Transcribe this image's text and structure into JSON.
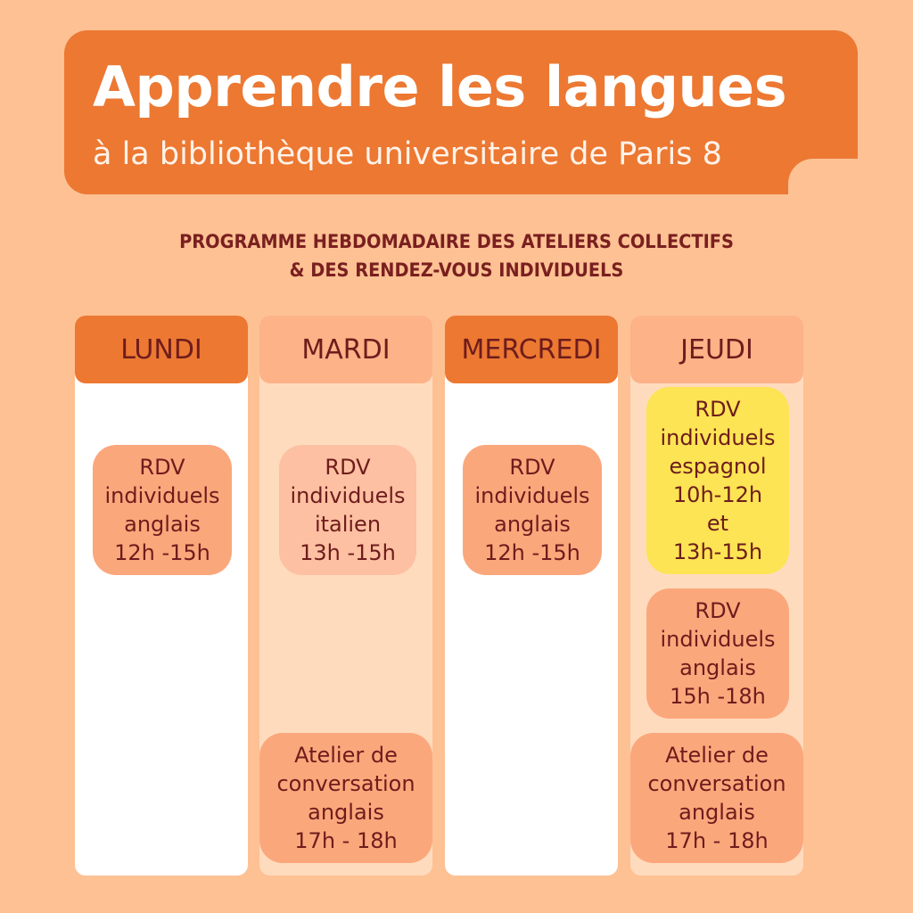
{
  "header": {
    "title": "Apprendre les langues",
    "subtitle": "à la bibliothèque universitaire de Paris 8"
  },
  "programme": {
    "line1": "PROGRAMME HEBDOMADAIRE DES ATELIERS COLLECTIFS",
    "line2": "& DES RENDEZ-VOUS INDIVIDUELS"
  },
  "days": {
    "lundi": {
      "label": "LUNDI",
      "events": [
        "RDV\nindividuels\nanglais\n12h -15h"
      ]
    },
    "mardi": {
      "label": "MARDI",
      "events": [
        "RDV\nindividuels\nitalien\n13h -15h",
        "Atelier de\nconversation\nanglais\n17h - 18h"
      ]
    },
    "mercredi": {
      "label": "MERCREDI",
      "events": [
        "RDV\nindividuels\nanglais\n12h -15h"
      ]
    },
    "jeudi": {
      "label": "JEUDI",
      "events": [
        "RDV\nindividuels\nespagnol\n10h-12h\net\n13h-15h",
        "RDV\nindividuels\nanglais\n15h -18h",
        "Atelier de\nconversation\nanglais\n17h - 18h"
      ]
    }
  },
  "colors": {
    "background": "#fdc194",
    "banner": "#ec7832",
    "text_dark": "#6e1c1c",
    "highlight_yellow": "#fce454"
  }
}
